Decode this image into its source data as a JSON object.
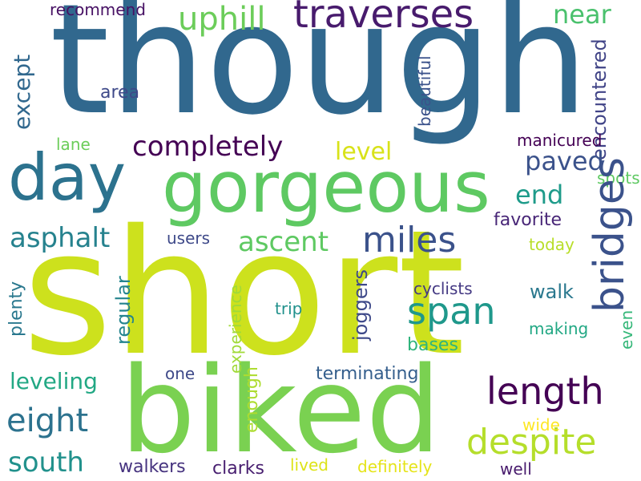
{
  "words": [
    {
      "text": "short",
      "color": "#cde11d",
      "rotated": false
    },
    {
      "text": "though",
      "color": "#31688e",
      "rotated": false
    },
    {
      "text": "biked",
      "color": "#7ad151",
      "rotated": false
    },
    {
      "text": "gorgeous",
      "color": "#5ec962",
      "rotated": false
    },
    {
      "text": "day",
      "color": "#2c728e",
      "rotated": false
    },
    {
      "text": "traverses",
      "color": "#481b6d",
      "rotated": false
    },
    {
      "text": "uphill",
      "color": "#6ccd5a",
      "rotated": false
    },
    {
      "text": "near",
      "color": "#4ac16d",
      "rotated": false
    },
    {
      "text": "recommend",
      "color": "#471164",
      "rotated": false
    },
    {
      "text": "except",
      "color": "#31688e",
      "rotated": true
    },
    {
      "text": "beautiful",
      "color": "#3b528b",
      "rotated": true
    },
    {
      "text": "encountered",
      "color": "#414487",
      "rotated": true
    },
    {
      "text": "area",
      "color": "#3e4989",
      "rotated": false
    },
    {
      "text": "completely",
      "color": "#440154",
      "rotated": false
    },
    {
      "text": "level",
      "color": "#d8e219",
      "rotated": false
    },
    {
      "text": "lane",
      "color": "#6ccd5a",
      "rotated": false
    },
    {
      "text": "manicured",
      "color": "#440154",
      "rotated": false
    },
    {
      "text": "paved",
      "color": "#3b528b",
      "rotated": false
    },
    {
      "text": "spots",
      "color": "#5ec962",
      "rotated": false
    },
    {
      "text": "end",
      "color": "#1e9b8a",
      "rotated": false
    },
    {
      "text": "asphalt",
      "color": "#26828e",
      "rotated": false
    },
    {
      "text": "ascent",
      "color": "#5ec962",
      "rotated": false
    },
    {
      "text": "miles",
      "color": "#3b528b",
      "rotated": false
    },
    {
      "text": "favorite",
      "color": "#482677",
      "rotated": false
    },
    {
      "text": "bridges",
      "color": "#3b528b",
      "rotated": true
    },
    {
      "text": "users",
      "color": "#3e4989",
      "rotated": false
    },
    {
      "text": "today",
      "color": "#b8de29",
      "rotated": false
    },
    {
      "text": "span",
      "color": "#1f988b",
      "rotated": false
    },
    {
      "text": "plenty",
      "color": "#2a788e",
      "rotated": true
    },
    {
      "text": "regular",
      "color": "#25858e",
      "rotated": true
    },
    {
      "text": "experience",
      "color": "#a0da39",
      "rotated": true
    },
    {
      "text": "joggers",
      "color": "#3e4989",
      "rotated": true
    },
    {
      "text": "trip",
      "color": "#21918c",
      "rotated": false
    },
    {
      "text": "cyclists",
      "color": "#443983",
      "rotated": false
    },
    {
      "text": "walk",
      "color": "#2a788e",
      "rotated": false
    },
    {
      "text": "making",
      "color": "#22a884",
      "rotated": false
    },
    {
      "text": "even",
      "color": "#35b779",
      "rotated": true
    },
    {
      "text": "bases",
      "color": "#2fb47c",
      "rotated": false
    },
    {
      "text": "leveling",
      "color": "#22a884",
      "rotated": false
    },
    {
      "text": "one",
      "color": "#3e4989",
      "rotated": false
    },
    {
      "text": "enough",
      "color": "#addc30",
      "rotated": true
    },
    {
      "text": "terminating",
      "color": "#355f8d",
      "rotated": false
    },
    {
      "text": "length",
      "color": "#440154",
      "rotated": false
    },
    {
      "text": "eight",
      "color": "#2c728e",
      "rotated": false
    },
    {
      "text": "despite",
      "color": "#b5de2b",
      "rotated": false
    },
    {
      "text": "wide",
      "color": "#fde725",
      "rotated": false
    },
    {
      "text": "south",
      "color": "#21918c",
      "rotated": false
    },
    {
      "text": "walkers",
      "color": "#46337f",
      "rotated": false
    },
    {
      "text": "clarks",
      "color": "#481f70",
      "rotated": false
    },
    {
      "text": "lived",
      "color": "#dde318",
      "rotated": false
    },
    {
      "text": "definitely",
      "color": "#e5e419",
      "rotated": false
    },
    {
      "text": "well",
      "color": "#481b6d",
      "rotated": false
    }
  ]
}
